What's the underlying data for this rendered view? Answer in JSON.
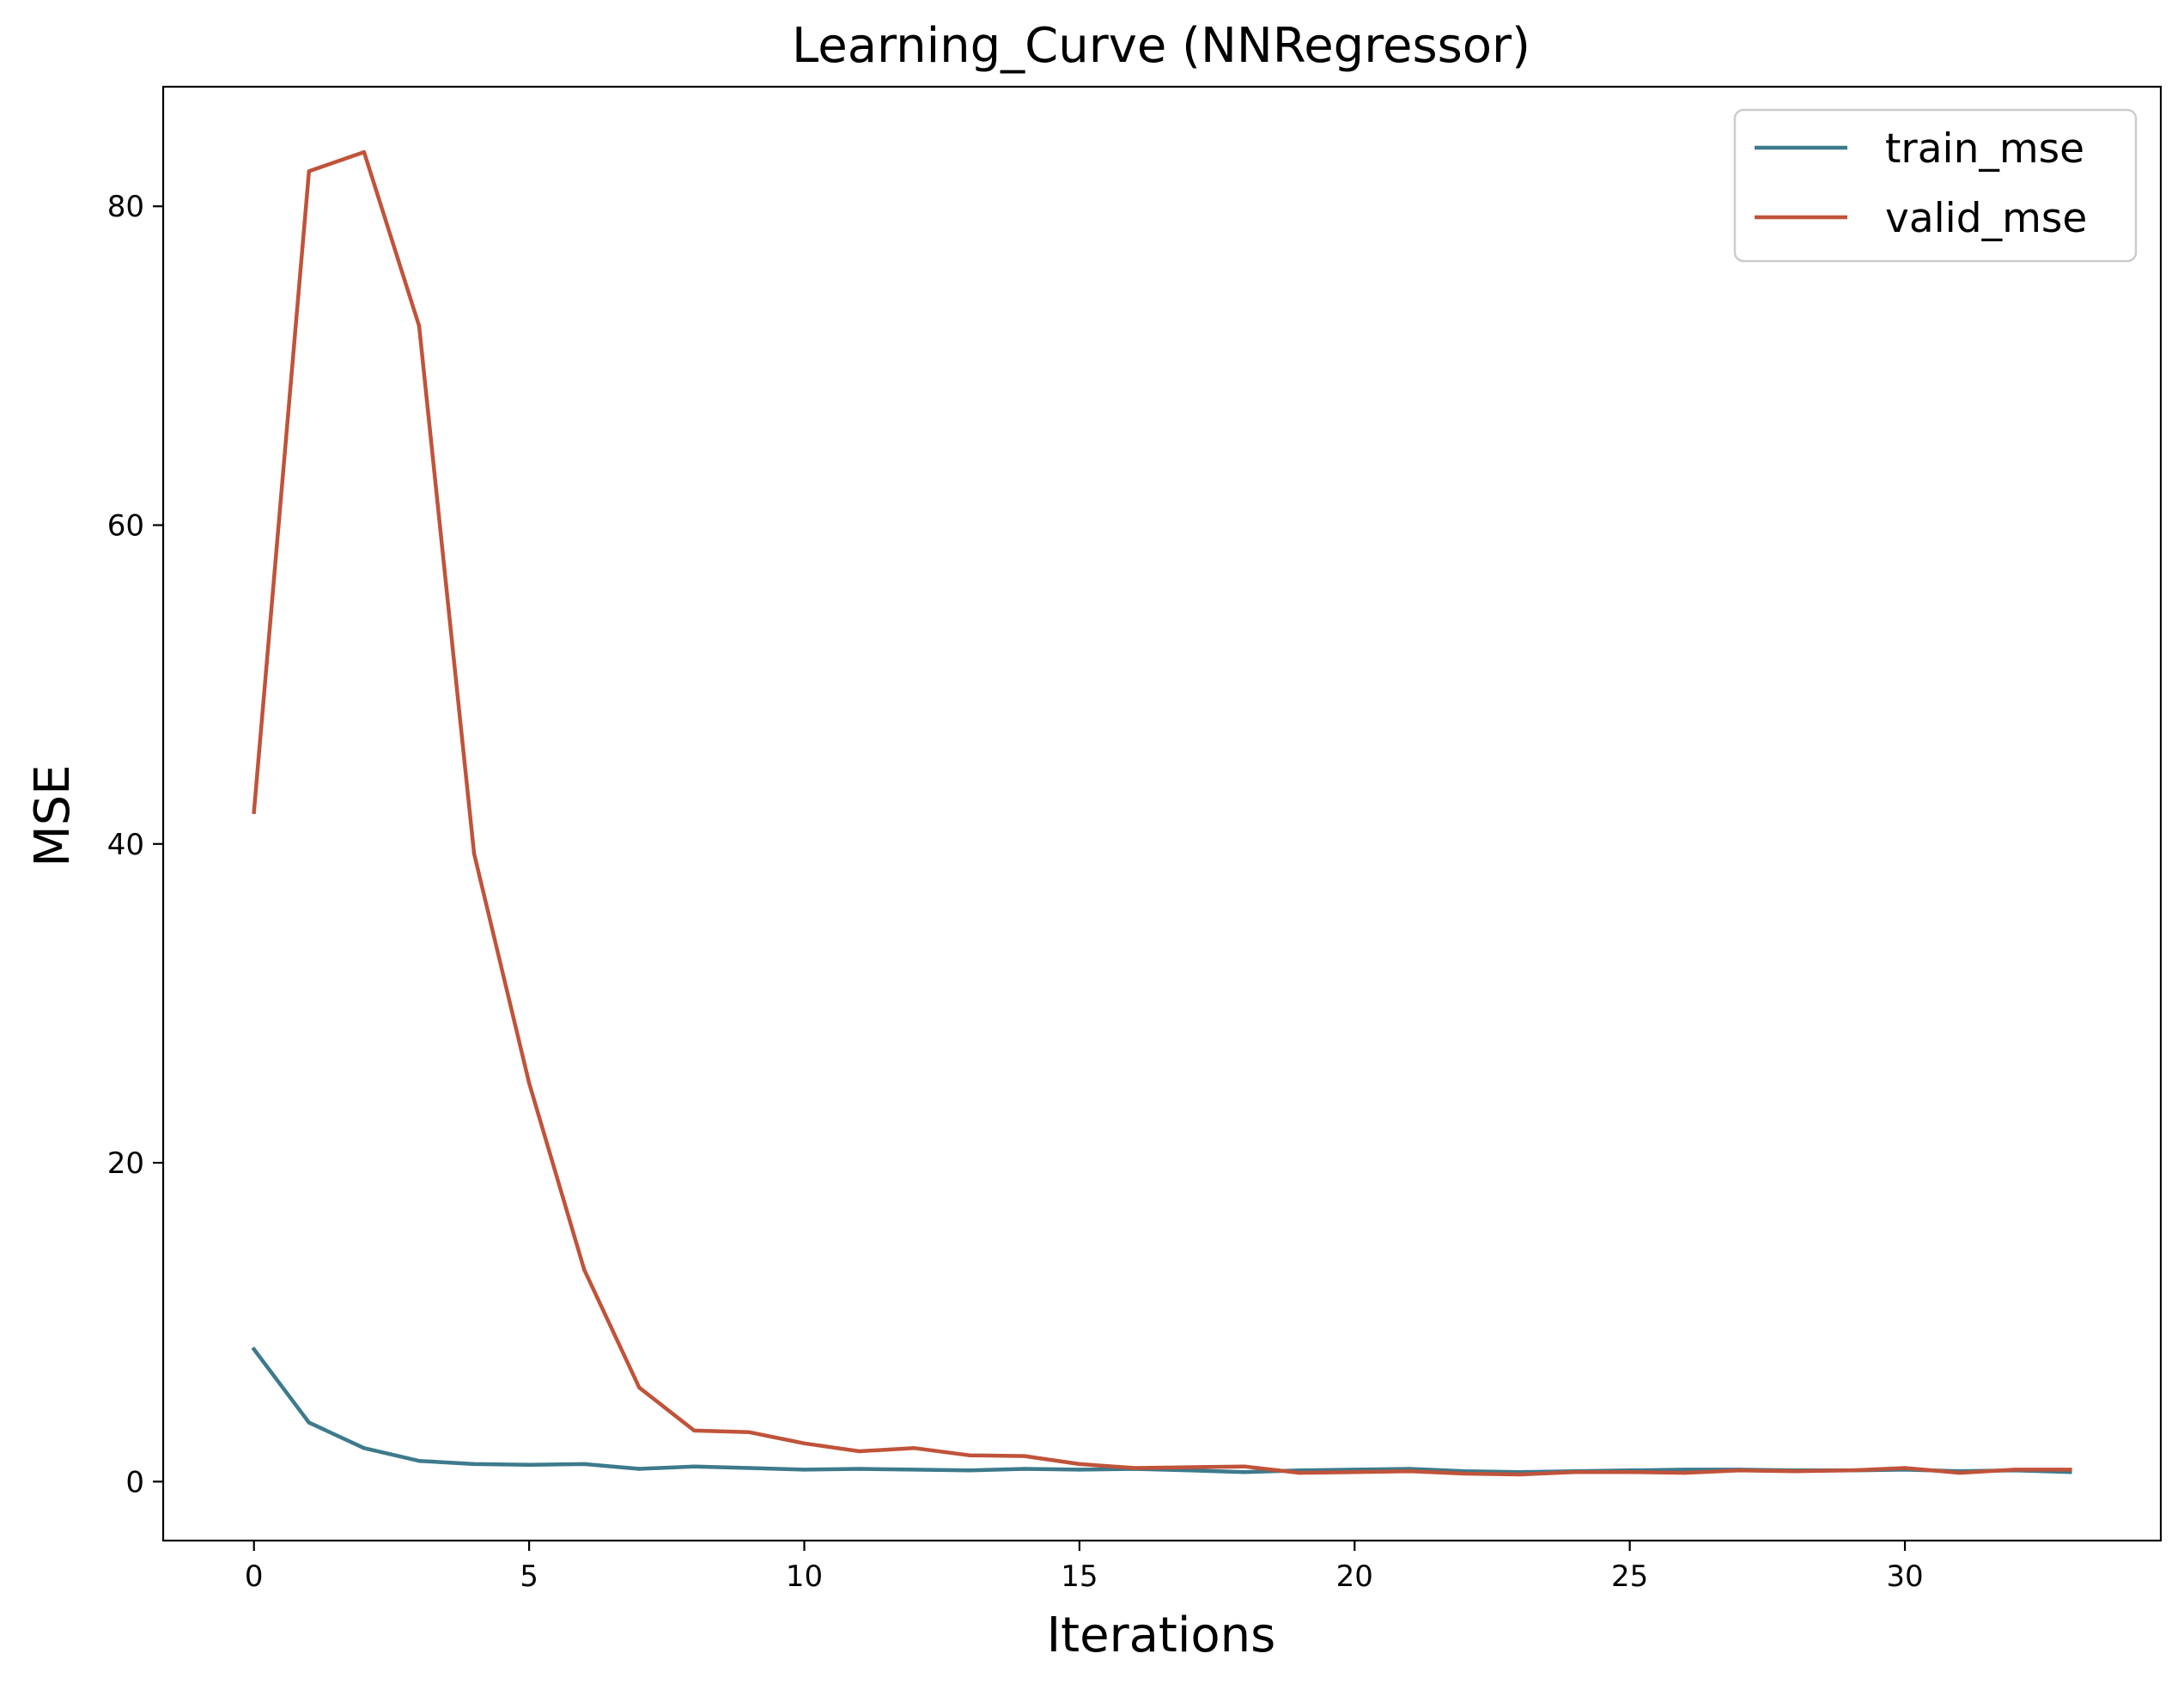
{
  "chart_data": {
    "type": "line",
    "title": "Learning_Curve (NNRegressor)",
    "xlabel": "Iterations",
    "ylabel": "MSE",
    "xlim": [
      -1.65,
      34.65
    ],
    "ylim": [
      -3.7,
      87.5
    ],
    "xticks": [
      0,
      5,
      10,
      15,
      20,
      25,
      30
    ],
    "yticks": [
      0,
      20,
      40,
      60,
      80
    ],
    "legend_position": "upper-right",
    "grid": false,
    "x": [
      0,
      1,
      2,
      3,
      4,
      5,
      6,
      7,
      8,
      9,
      10,
      11,
      12,
      13,
      14,
      15,
      16,
      17,
      18,
      19,
      20,
      21,
      22,
      23,
      24,
      25,
      26,
      27,
      28,
      29,
      30,
      31,
      32,
      33
    ],
    "series": [
      {
        "name": "train_mse",
        "color": "#3d7a8c",
        "values": [
          8.3,
          3.7,
          2.1,
          1.3,
          1.1,
          1.05,
          1.1,
          0.8,
          0.95,
          0.85,
          0.75,
          0.8,
          0.75,
          0.7,
          0.8,
          0.75,
          0.8,
          0.7,
          0.6,
          0.7,
          0.75,
          0.8,
          0.65,
          0.6,
          0.65,
          0.7,
          0.75,
          0.75,
          0.7,
          0.7,
          0.75,
          0.65,
          0.7,
          0.6
        ]
      },
      {
        "name": "valid_mse",
        "color": "#c0533a",
        "values": [
          42.0,
          82.2,
          83.4,
          72.5,
          39.4,
          25.0,
          13.3,
          5.9,
          3.2,
          3.1,
          2.4,
          1.9,
          2.1,
          1.65,
          1.6,
          1.1,
          0.85,
          0.9,
          0.95,
          0.55,
          0.6,
          0.65,
          0.5,
          0.45,
          0.6,
          0.6,
          0.55,
          0.7,
          0.65,
          0.7,
          0.85,
          0.55,
          0.75,
          0.75
        ]
      }
    ]
  }
}
